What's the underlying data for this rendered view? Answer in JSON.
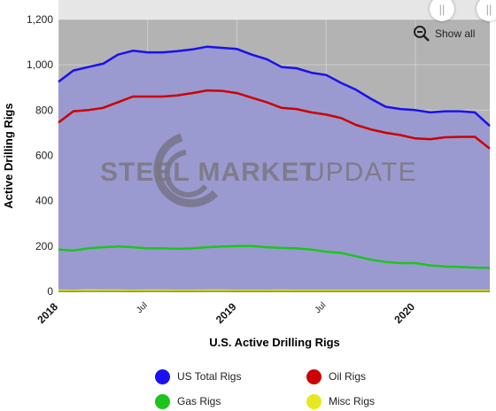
{
  "chart_data": {
    "type": "area",
    "title": "",
    "xlabel": "U.S. Active Drilling Rigs",
    "ylabel": "Active Drilling Rigs",
    "ylim": [
      0,
      1200
    ],
    "yticks": [
      "0",
      "200",
      "400",
      "600",
      "800",
      "1,000",
      "1,200"
    ],
    "xlim": [
      "2018-01",
      "2020-06"
    ],
    "xticks_major": [
      "2018",
      "2019",
      "2020"
    ],
    "xticks_minor": [
      "Jul",
      "Jul"
    ],
    "grid": true,
    "legend_position": "bottom",
    "watermark": "STEEL MARKET UPDATE",
    "x": [
      "2018-01",
      "2018-02",
      "2018-03",
      "2018-04",
      "2018-05",
      "2018-06",
      "2018-07",
      "2018-08",
      "2018-09",
      "2018-10",
      "2018-11",
      "2018-12",
      "2019-01",
      "2019-02",
      "2019-03",
      "2019-04",
      "2019-05",
      "2019-06",
      "2019-07",
      "2019-08",
      "2019-09",
      "2019-10",
      "2019-11",
      "2019-12",
      "2020-01",
      "2020-02",
      "2020-03",
      "2020-04",
      "2020-05",
      "2020-06"
    ],
    "series": [
      {
        "name": "US Total Rigs",
        "color": "#1a10f0",
        "values": [
          925,
          975,
          990,
          1005,
          1045,
          1062,
          1055,
          1055,
          1060,
          1068,
          1080,
          1075,
          1070,
          1045,
          1025,
          990,
          985,
          965,
          955,
          920,
          890,
          850,
          815,
          805,
          800,
          790,
          795,
          795,
          790,
          730
        ]
      },
      {
        "name": "Oil Rigs",
        "color": "#cc0000",
        "values": [
          745,
          795,
          800,
          810,
          835,
          860,
          860,
          860,
          865,
          875,
          887,
          885,
          875,
          855,
          835,
          810,
          805,
          790,
          780,
          765,
          735,
          715,
          700,
          690,
          675,
          672,
          680,
          682,
          682,
          630
        ]
      },
      {
        "name": "Gas Rigs",
        "color": "#1dc41d",
        "values": [
          185,
          180,
          190,
          195,
          198,
          195,
          190,
          190,
          188,
          190,
          195,
          198,
          200,
          200,
          195,
          192,
          190,
          185,
          175,
          170,
          155,
          140,
          130,
          125,
          125,
          115,
          110,
          108,
          105,
          104
        ]
      },
      {
        "name": "Misc Rigs",
        "color": "#e8e820",
        "values": [
          3,
          2,
          4,
          3,
          3,
          2,
          3,
          3,
          2,
          2,
          3,
          3,
          2,
          2,
          2,
          3,
          2,
          2,
          2,
          2,
          2,
          2,
          2,
          2,
          2,
          2,
          2,
          2,
          2,
          2
        ]
      }
    ]
  },
  "controls": {
    "show_all_label": "Show all",
    "zoom_icon": "zoom-out-icon",
    "handle_icon": "pause-handle-icon"
  },
  "colors": {
    "plot_upper_bg": "#b3b3b3",
    "area_fill": "#9a9ad0"
  }
}
